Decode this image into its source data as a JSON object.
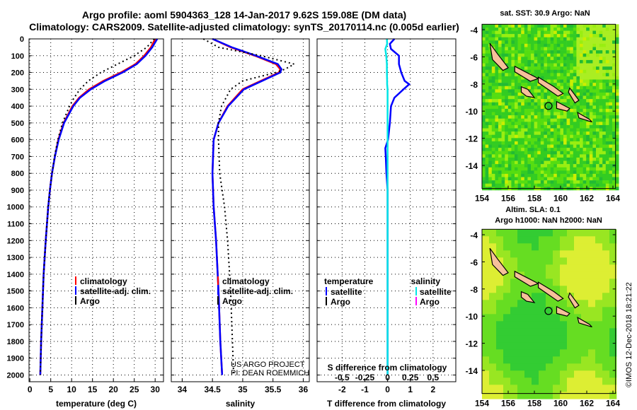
{
  "title_line1": "Argo profile: aoml 5904363_128 14-Jan-2017 9.62S 159.08E (DM data)",
  "title_line2": "Climatology: CARS2009. Satellite-adjusted climatology: synTS_20170114.nc (0.005d earlier)",
  "credit_line1": "US ARGO PROJECT",
  "credit_line2": "PI: DEAN ROEMMICH",
  "imos_stamp": "©IMOS 12-Dec-2018 18:21:22",
  "colors": {
    "climatology": "#ff0000",
    "satellite": "#0000ff",
    "argo": "#000000",
    "sal_satellite": "#00e5e5",
    "sal_argo": "#ff00ff"
  },
  "chart_data": [
    {
      "type": "line",
      "id": "temperature",
      "xlabel": "temperature (deg C)",
      "ylabel": "depth",
      "xlim": [
        -0.2,
        32
      ],
      "ylim": [
        2040,
        0
      ],
      "xticks": [
        0,
        5,
        10,
        15,
        20,
        25,
        30
      ],
      "yticks": [
        0,
        100,
        200,
        300,
        400,
        500,
        600,
        700,
        800,
        900,
        1000,
        1100,
        1200,
        1300,
        1400,
        1500,
        1600,
        1700,
        1800,
        1900,
        2000
      ],
      "legend": [
        "climatology",
        "satellite-adj. clim.",
        "Argo"
      ],
      "legend_position": "lower-center",
      "depth": [
        0,
        50,
        100,
        150,
        200,
        250,
        300,
        350,
        400,
        500,
        600,
        700,
        800,
        900,
        1000,
        1200,
        1400,
        1600,
        1800,
        2000
      ],
      "series": [
        {
          "name": "climatology",
          "values": [
            30,
            29,
            27.4,
            25.3,
            21.8,
            17.6,
            14.2,
            11.8,
            10.2,
            8.1,
            6.8,
            6.0,
            5.3,
            4.8,
            4.4,
            3.8,
            3.3,
            3.0,
            2.7,
            2.5
          ]
        },
        {
          "name": "satellite-adj. clim.",
          "values": [
            30.5,
            29.3,
            27.7,
            25.6,
            22.2,
            18.0,
            14.6,
            12.0,
            10.4,
            8.2,
            6.9,
            6.0,
            5.3,
            4.8,
            4.4,
            3.8,
            3.3,
            3.0,
            2.7,
            2.5
          ]
        },
        {
          "name": "Argo",
          "values": [
            29.8,
            28,
            25,
            21,
            17,
            14,
            12,
            10.6,
            9.5,
            7.8,
            6.7,
            5.9,
            5.3,
            4.8,
            4.4,
            3.8,
            3.3,
            3.0,
            2.7,
            2.5
          ]
        }
      ]
    },
    {
      "type": "line",
      "id": "salinity",
      "xlabel": "salinity",
      "xlim": [
        33.82,
        36.1
      ],
      "ylim": [
        2040,
        0
      ],
      "xticks": [
        34,
        34.5,
        35,
        35.5,
        36
      ],
      "legend": [
        "climatology",
        "satellite-adj. clim.",
        "Argo"
      ],
      "legend_position": "lower-center",
      "depth": [
        0,
        50,
        100,
        150,
        180,
        200,
        250,
        300,
        400,
        500,
        600,
        800,
        1000,
        1200,
        1500,
        1800,
        2000
      ],
      "series": [
        {
          "name": "climatology",
          "values": [
            34.5,
            34.8,
            35.2,
            35.55,
            35.62,
            35.6,
            35.3,
            35.0,
            34.75,
            34.6,
            34.52,
            34.5,
            34.52,
            34.56,
            34.6,
            34.63,
            34.66
          ]
        },
        {
          "name": "satellite-adj. clim.",
          "values": [
            34.5,
            34.82,
            35.22,
            35.58,
            35.64,
            35.62,
            35.32,
            35.02,
            34.76,
            34.6,
            34.52,
            34.5,
            34.52,
            34.56,
            34.6,
            34.63,
            34.66
          ]
        },
        {
          "name": "Argo",
          "values": [
            34.35,
            34.6,
            35.3,
            35.85,
            35.7,
            35.55,
            35.0,
            34.8,
            34.65,
            34.6,
            34.6,
            34.62,
            34.7,
            34.75,
            34.8,
            34.83,
            34.85
          ]
        }
      ]
    },
    {
      "type": "line",
      "id": "difference",
      "xlabel": "T difference from climatology",
      "xlabel2": "S difference from climatology",
      "xlim": [
        -3.1,
        3.0
      ],
      "ylim": [
        2040,
        0
      ],
      "xticks": [
        -2,
        -1,
        0,
        1,
        2
      ],
      "xticks2": [
        -0.5,
        -0.25,
        0,
        0.25,
        0.5
      ],
      "legend_temperature_title": "temperature",
      "legend_salinity_title": "salinity",
      "legend_temperature": [
        "satellite",
        "Argo"
      ],
      "legend_salinity": [
        "satellite",
        "Argo"
      ],
      "depth": [
        0,
        30,
        60,
        100,
        150,
        200,
        250,
        270,
        300,
        350,
        400,
        500,
        600,
        650,
        700,
        800,
        900,
        1000,
        1500,
        2000
      ],
      "series": [
        {
          "name": "T satellite",
          "values": [
            0.3,
            0.1,
            0.15,
            0.5,
            0.5,
            0.6,
            0.75,
            0.95,
            0.7,
            0.3,
            0.15,
            0.1,
            0.02,
            -0.1,
            -0.08,
            -0.05,
            0,
            0,
            0,
            0
          ]
        },
        {
          "name": "S satellite",
          "values": [
            -0.03,
            -0.02,
            -0.1,
            -0.06,
            -0.03,
            -0.03,
            -0.02,
            -0.02,
            0,
            0,
            0,
            0,
            0,
            0,
            0,
            0,
            0,
            0,
            0,
            0
          ]
        }
      ]
    },
    {
      "type": "heatmap",
      "id": "sst-map",
      "title": "sat. SST: 30.9 Argo: NaN",
      "xlim": [
        154,
        164.2
      ],
      "ylim": [
        -15.7,
        -3.6
      ],
      "xticks": [
        154,
        156,
        158,
        160,
        162,
        164
      ],
      "yticks": [
        -4,
        -6,
        -8,
        -10,
        -12,
        -14
      ],
      "argo_position": [
        159.08,
        -9.62
      ]
    },
    {
      "type": "heatmap",
      "id": "sla-map",
      "title": "Altim. SLA: 0.1",
      "subtitle": "Argo h1000: NaN h2000: NaN",
      "xlim": [
        154,
        164.2
      ],
      "ylim": [
        -15.7,
        -3.6
      ],
      "xticks": [
        154,
        156,
        158,
        160,
        162,
        164
      ],
      "yticks": [
        -4,
        -6,
        -8,
        -10,
        -12,
        -14
      ],
      "argo_position": [
        159.08,
        -9.62
      ]
    }
  ]
}
